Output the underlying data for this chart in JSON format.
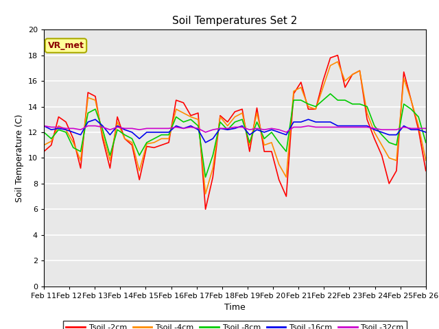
{
  "title": "Soil Temperatures Set 2",
  "xlabel": "Time",
  "ylabel": "Soil Temperature (C)",
  "ylim": [
    0,
    20
  ],
  "yticks": [
    0,
    2,
    4,
    6,
    8,
    10,
    12,
    14,
    16,
    18,
    20
  ],
  "xtick_labels": [
    "Feb 11",
    "Feb 12",
    "Feb 13",
    "Feb 14",
    "Feb 15",
    "Feb 16",
    "Feb 17",
    "Feb 18",
    "Feb 19",
    "Feb 20",
    "Feb 21",
    "Feb 22",
    "Feb 23",
    "Feb 24",
    "Feb 25",
    "Feb 26"
  ],
  "background_color": "#e8e8e8",
  "grid_color": "white",
  "annotation_text": "VR_met",
  "annotation_bg": "#ffff99",
  "annotation_border": "#aaaa00",
  "series_order": [
    "Tsoil -2cm",
    "Tsoil -4cm",
    "Tsoil -8cm",
    "Tsoil -16cm",
    "Tsoil -32cm"
  ],
  "series": {
    "Tsoil -2cm": {
      "color": "#ff0000",
      "lw": 1.2,
      "data": [
        10.5,
        11.0,
        13.2,
        12.8,
        11.5,
        9.2,
        15.1,
        14.8,
        11.5,
        9.2,
        13.2,
        11.5,
        11.0,
        8.3,
        10.9,
        10.8,
        11.0,
        11.2,
        14.5,
        14.3,
        13.3,
        13.5,
        6.0,
        8.5,
        13.3,
        12.8,
        13.6,
        13.8,
        10.5,
        13.9,
        10.5,
        10.5,
        8.3,
        7.0,
        15.0,
        15.9,
        13.8,
        13.8,
        16.0,
        17.8,
        18.0,
        15.5,
        16.5,
        16.8,
        13.0,
        11.5,
        10.2,
        8.0,
        9.0,
        16.7,
        14.5,
        12.2,
        9.0
      ]
    },
    "Tsoil -4cm": {
      "color": "#ff8c00",
      "lw": 1.2,
      "data": [
        11.0,
        11.3,
        12.5,
        12.2,
        11.2,
        9.8,
        14.7,
        14.5,
        11.8,
        9.8,
        12.8,
        11.5,
        11.2,
        9.0,
        11.1,
        11.2,
        11.5,
        11.5,
        13.8,
        13.5,
        13.2,
        13.0,
        7.2,
        9.2,
        13.2,
        12.5,
        13.2,
        13.5,
        11.0,
        13.5,
        11.0,
        11.2,
        9.5,
        8.5,
        15.2,
        15.5,
        14.0,
        13.8,
        15.5,
        17.2,
        17.5,
        16.0,
        16.5,
        16.8,
        13.5,
        12.0,
        11.0,
        10.0,
        9.8,
        16.2,
        14.5,
        12.5,
        9.8
      ]
    },
    "Tsoil -8cm": {
      "color": "#00cc00",
      "lw": 1.2,
      "data": [
        12.0,
        11.5,
        12.2,
        12.0,
        10.8,
        10.5,
        13.5,
        13.8,
        12.2,
        10.2,
        12.2,
        11.8,
        11.5,
        10.2,
        11.2,
        11.5,
        11.8,
        11.8,
        13.2,
        12.8,
        13.0,
        12.5,
        8.5,
        10.2,
        12.8,
        12.2,
        12.8,
        13.0,
        11.2,
        12.8,
        11.5,
        12.0,
        11.2,
        10.5,
        14.5,
        14.5,
        14.2,
        14.0,
        14.5,
        15.0,
        14.5,
        14.5,
        14.2,
        14.2,
        14.0,
        12.5,
        11.8,
        11.2,
        11.0,
        14.2,
        13.8,
        13.2,
        11.2
      ]
    },
    "Tsoil -16cm": {
      "color": "#0000ee",
      "lw": 1.2,
      "data": [
        12.5,
        12.2,
        12.3,
        12.2,
        12.0,
        11.8,
        12.8,
        13.0,
        12.5,
        11.8,
        12.5,
        12.2,
        12.0,
        11.5,
        12.0,
        12.0,
        12.0,
        12.0,
        12.5,
        12.3,
        12.5,
        12.2,
        11.2,
        11.5,
        12.3,
        12.2,
        12.3,
        12.5,
        11.8,
        12.2,
        12.0,
        12.2,
        12.0,
        11.8,
        12.8,
        12.8,
        13.0,
        12.8,
        12.8,
        12.8,
        12.5,
        12.5,
        12.5,
        12.5,
        12.5,
        12.2,
        12.0,
        11.8,
        11.8,
        12.5,
        12.2,
        12.2,
        12.0
      ]
    },
    "Tsoil -32cm": {
      "color": "#cc00cc",
      "lw": 1.2,
      "data": [
        12.5,
        12.4,
        12.4,
        12.3,
        12.3,
        12.2,
        12.5,
        12.5,
        12.4,
        12.2,
        12.4,
        12.3,
        12.3,
        12.2,
        12.3,
        12.3,
        12.3,
        12.3,
        12.4,
        12.3,
        12.4,
        12.3,
        12.0,
        12.2,
        12.3,
        12.3,
        12.4,
        12.4,
        12.2,
        12.3,
        12.2,
        12.3,
        12.2,
        12.0,
        12.4,
        12.4,
        12.5,
        12.4,
        12.4,
        12.4,
        12.4,
        12.4,
        12.4,
        12.4,
        12.4,
        12.3,
        12.2,
        12.2,
        12.2,
        12.4,
        12.3,
        12.3,
        12.3
      ]
    }
  }
}
